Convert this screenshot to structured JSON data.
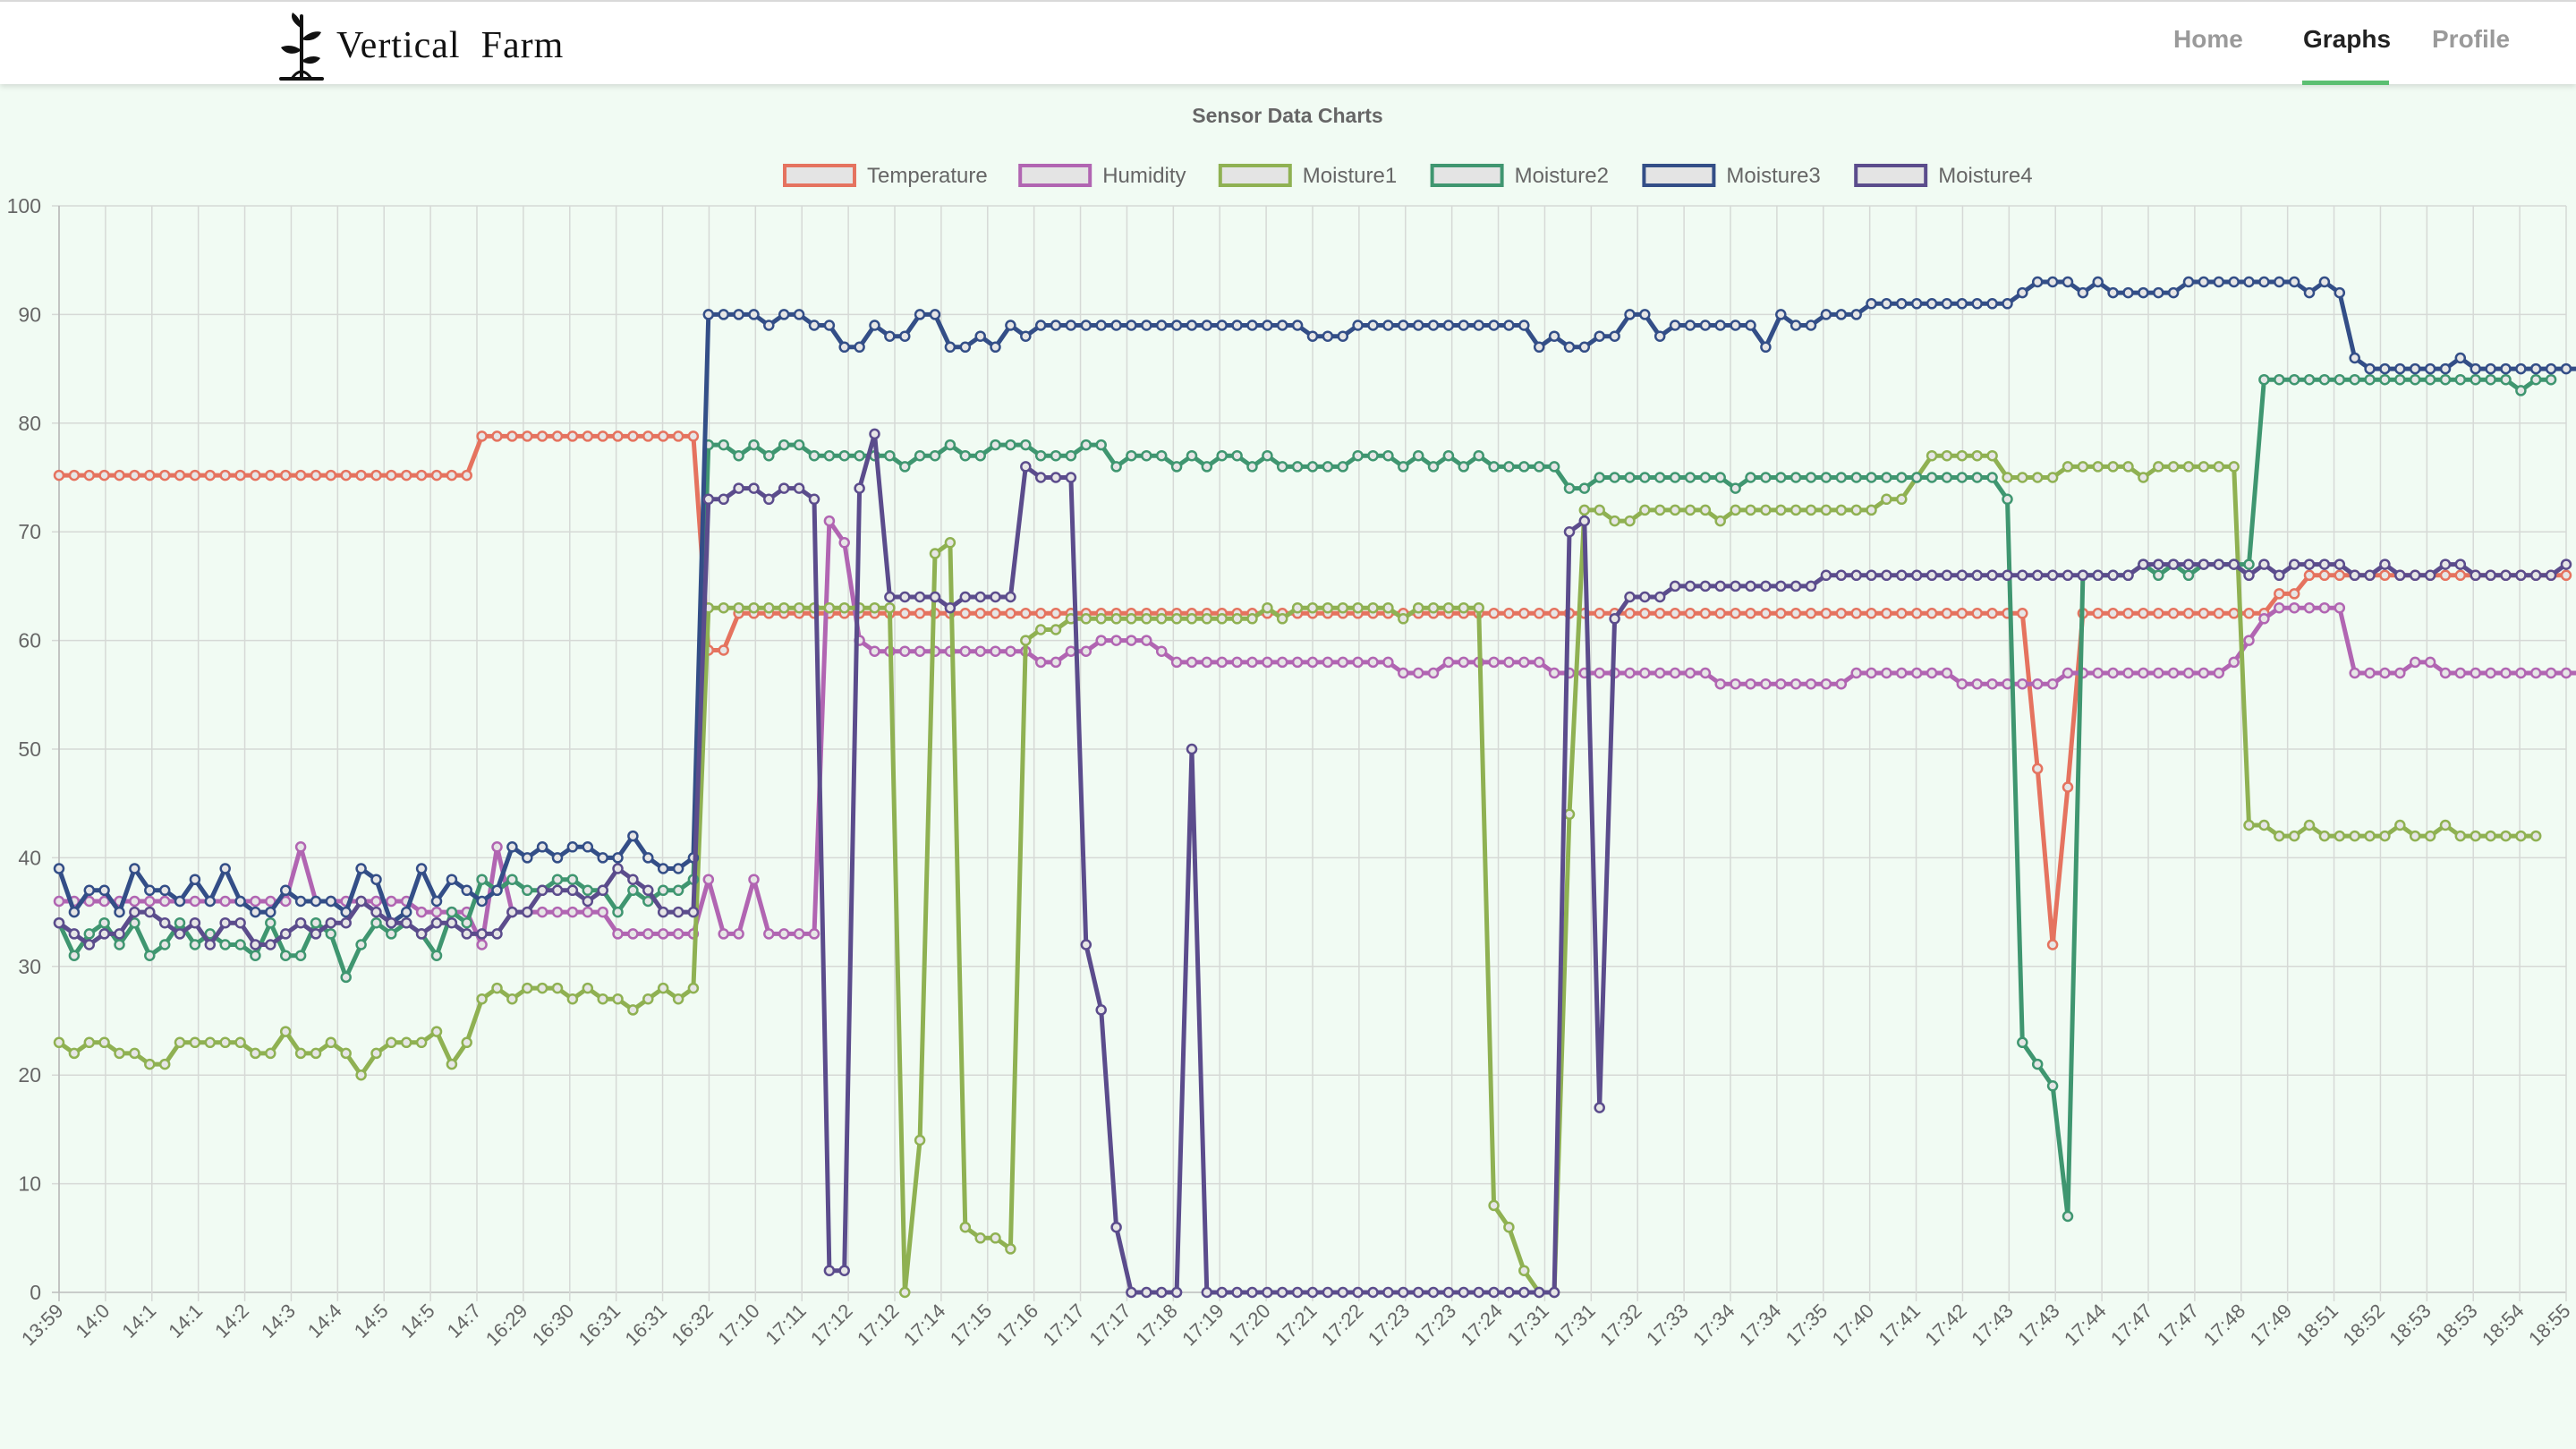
{
  "nav": {
    "brand": "Vertical  Farm",
    "brand_icon": "plant-logo-icon",
    "links": [
      {
        "label": "Home",
        "active": false
      },
      {
        "label": "Graphs",
        "active": true
      },
      {
        "label": "Profile",
        "active": false
      }
    ],
    "active_color": "#5cbf72"
  },
  "chart_data": {
    "type": "line",
    "title": "Sensor Data Charts",
    "xlabel": "",
    "ylabel": "",
    "ylim": [
      0,
      100
    ],
    "yticks": [
      0,
      10,
      20,
      30,
      40,
      50,
      60,
      70,
      80,
      90,
      100
    ],
    "grid": true,
    "legend": "top",
    "xtick_labels": [
      "13:59",
      "14:0",
      "14:1",
      "14:1",
      "14:2",
      "14:3",
      "14:4",
      "14:5",
      "14:5",
      "14:7",
      "16:29",
      "16:30",
      "16:31",
      "16:31",
      "16:32",
      "17:10",
      "17:11",
      "17:12",
      "17:12",
      "17:14",
      "17:15",
      "17:16",
      "17:17",
      "17:17",
      "17:18",
      "17:19",
      "17:20",
      "17:21",
      "17:22",
      "17:23",
      "17:23",
      "17:24",
      "17:31",
      "17:31",
      "17:32",
      "17:33",
      "17:34",
      "17:34",
      "17:35",
      "17:40",
      "17:41",
      "17:42",
      "17:43",
      "17:43",
      "17:44",
      "17:47",
      "17:47",
      "17:48",
      "17:49",
      "18:51",
      "18:52",
      "18:53",
      "18:53",
      "18:54",
      "18:55"
    ],
    "series": [
      {
        "name": "Temperature",
        "color": "#e5735f",
        "values": [
          75.2,
          75.2,
          75.2,
          75.2,
          75.2,
          75.2,
          75.2,
          75.2,
          75.2,
          75.2,
          75.2,
          75.2,
          75.2,
          75.2,
          75.2,
          75.2,
          75.2,
          75.2,
          75.2,
          75.2,
          75.2,
          75.2,
          75.2,
          75.2,
          75.2,
          75.2,
          75.2,
          75.2,
          78.8,
          78.8,
          78.8,
          78.8,
          78.8,
          78.8,
          78.8,
          78.8,
          78.8,
          78.8,
          78.8,
          78.8,
          78.8,
          78.8,
          78.8,
          59.1,
          59.1,
          62.5,
          62.5,
          62.5,
          62.5,
          62.5,
          62.5,
          62.5,
          62.5,
          62.5,
          62.5,
          62.5,
          62.5,
          62.5,
          62.5,
          62.5,
          62.5,
          62.5,
          62.5,
          62.5,
          62.5,
          62.5,
          62.5,
          62.5,
          62.5,
          62.5,
          62.5,
          62.5,
          62.5,
          62.5,
          62.5,
          62.5,
          62.5,
          62.5,
          62.5,
          62.5,
          62.5,
          62.5,
          62.5,
          62.5,
          62.5,
          62.5,
          62.5,
          62.5,
          62.5,
          62.5,
          62.5,
          62.5,
          62.5,
          62.5,
          62.5,
          62.5,
          62.5,
          62.5,
          62.5,
          62.5,
          62.5,
          62.5,
          62.5,
          62.5,
          62.5,
          62.5,
          62.5,
          62.5,
          62.5,
          62.5,
          62.5,
          62.5,
          62.5,
          62.5,
          62.5,
          62.5,
          62.5,
          62.5,
          62.5,
          62.5,
          62.5,
          62.5,
          62.5,
          62.5,
          62.5,
          62.5,
          62.5,
          62.5,
          62.5,
          62.5,
          62.5,
          48.2,
          32,
          46.5,
          62.5,
          62.5,
          62.5,
          62.5,
          62.5,
          62.5,
          62.5,
          62.5,
          62.5,
          62.5,
          62.5,
          62.5,
          62.5,
          64.3,
          64.3,
          66,
          66,
          66,
          66,
          66,
          66,
          66,
          66,
          66,
          66,
          66,
          66,
          66,
          66,
          66,
          66,
          66,
          66
        ]
      },
      {
        "name": "Humidity",
        "color": "#b165b2",
        "values": [
          36,
          36,
          36,
          36,
          36,
          36,
          36,
          36,
          36,
          36,
          36,
          36,
          36,
          36,
          36,
          36,
          41,
          36,
          36,
          36,
          36,
          36,
          36,
          36,
          35,
          35,
          35,
          35,
          32,
          41,
          35,
          35,
          35,
          35,
          35,
          35,
          35,
          33,
          33,
          33,
          33,
          33,
          33,
          38,
          33,
          33,
          38,
          33,
          33,
          33,
          33,
          71,
          69,
          60,
          59,
          59,
          59,
          59,
          59,
          59,
          59,
          59,
          59,
          59,
          59,
          58,
          58,
          59,
          59,
          60,
          60,
          60,
          60,
          59,
          58,
          58,
          58,
          58,
          58,
          58,
          58,
          58,
          58,
          58,
          58,
          58,
          58,
          58,
          58,
          57,
          57,
          57,
          58,
          58,
          58,
          58,
          58,
          58,
          58,
          57,
          57,
          57,
          57,
          57,
          57,
          57,
          57,
          57,
          57,
          57,
          56,
          56,
          56,
          56,
          56,
          56,
          56,
          56,
          56,
          57,
          57,
          57,
          57,
          57,
          57,
          57,
          56,
          56,
          56,
          56,
          56,
          56,
          56,
          57,
          57,
          57,
          57,
          57,
          57,
          57,
          57,
          57,
          57,
          57,
          58,
          60,
          62,
          63,
          63,
          63,
          63,
          63,
          57,
          57,
          57,
          57,
          58,
          58,
          57,
          57,
          57,
          57,
          57,
          57,
          57,
          57,
          57,
          57,
          56,
          56,
          56,
          56,
          56,
          56,
          56,
          56,
          56,
          56,
          56,
          56
        ]
      },
      {
        "name": "Moisture1",
        "color": "#8fb152",
        "values": [
          23,
          22,
          23,
          23,
          22,
          22,
          21,
          21,
          23,
          23,
          23,
          23,
          23,
          22,
          22,
          24,
          22,
          22,
          23,
          22,
          20,
          22,
          23,
          23,
          23,
          24,
          21,
          23,
          27,
          28,
          27,
          28,
          28,
          28,
          27,
          28,
          27,
          27,
          26,
          27,
          28,
          27,
          28,
          63,
          63,
          63,
          63,
          63,
          63,
          63,
          63,
          63,
          63,
          63,
          63,
          63,
          0,
          14,
          68,
          69,
          6,
          5,
          5,
          4,
          60,
          61,
          61,
          62,
          62,
          62,
          62,
          62,
          62,
          62,
          62,
          62,
          62,
          62,
          62,
          62,
          63,
          62,
          63,
          63,
          63,
          63,
          63,
          63,
          63,
          62,
          63,
          63,
          63,
          63,
          63,
          8,
          6,
          2,
          0,
          0,
          44,
          72,
          72,
          71,
          71,
          72,
          72,
          72,
          72,
          72,
          71,
          72,
          72,
          72,
          72,
          72,
          72,
          72,
          72,
          72,
          72,
          73,
          73,
          75,
          77,
          77,
          77,
          77,
          77,
          75,
          75,
          75,
          75,
          76,
          76,
          76,
          76,
          76,
          75,
          76,
          76,
          76,
          76,
          76,
          76,
          43,
          43,
          42,
          42,
          43,
          42,
          42,
          42,
          42,
          42,
          43,
          42,
          42,
          43,
          42,
          42,
          42,
          42,
          42,
          42
        ]
      },
      {
        "name": "Moisture2",
        "color": "#3f9670",
        "values": [
          34,
          31,
          33,
          34,
          32,
          34,
          31,
          32,
          34,
          32,
          33,
          32,
          32,
          31,
          34,
          31,
          31,
          34,
          33,
          29,
          32,
          34,
          33,
          34,
          33,
          31,
          35,
          34,
          38,
          37,
          38,
          37,
          37,
          38,
          38,
          37,
          37,
          35,
          37,
          36,
          37,
          37,
          38,
          78,
          78,
          77,
          78,
          77,
          78,
          78,
          77,
          77,
          77,
          77,
          77,
          77,
          76,
          77,
          77,
          78,
          77,
          77,
          78,
          78,
          78,
          77,
          77,
          77,
          78,
          78,
          76,
          77,
          77,
          77,
          76,
          77,
          76,
          77,
          77,
          76,
          77,
          76,
          76,
          76,
          76,
          76,
          77,
          77,
          77,
          76,
          77,
          76,
          77,
          76,
          77,
          76,
          76,
          76,
          76,
          76,
          74,
          74,
          75,
          75,
          75,
          75,
          75,
          75,
          75,
          75,
          75,
          74,
          75,
          75,
          75,
          75,
          75,
          75,
          75,
          75,
          75,
          75,
          75,
          75,
          75,
          75,
          75,
          75,
          75,
          73,
          23,
          21,
          19,
          7,
          66,
          66,
          66,
          66,
          67,
          66,
          67,
          66,
          67,
          67,
          67,
          67,
          84,
          84,
          84,
          84,
          84,
          84,
          84,
          84,
          84,
          84,
          84,
          84,
          84,
          84,
          84,
          84,
          84,
          83,
          84,
          84
        ]
      },
      {
        "name": "Moisture3",
        "color": "#334e87",
        "values": [
          39,
          35,
          37,
          37,
          35,
          39,
          37,
          37,
          36,
          38,
          36,
          39,
          36,
          35,
          35,
          37,
          36,
          36,
          36,
          35,
          39,
          38,
          34,
          35,
          39,
          36,
          38,
          37,
          36,
          37,
          41,
          40,
          41,
          40,
          41,
          41,
          40,
          40,
          42,
          40,
          39,
          39,
          40,
          90,
          90,
          90,
          90,
          89,
          90,
          90,
          89,
          89,
          87,
          87,
          89,
          88,
          88,
          90,
          90,
          87,
          87,
          88,
          87,
          89,
          88,
          89,
          89,
          89,
          89,
          89,
          89,
          89,
          89,
          89,
          89,
          89,
          89,
          89,
          89,
          89,
          89,
          89,
          89,
          88,
          88,
          88,
          89,
          89,
          89,
          89,
          89,
          89,
          89,
          89,
          89,
          89,
          89,
          89,
          87,
          88,
          87,
          87,
          88,
          88,
          90,
          90,
          88,
          89,
          89,
          89,
          89,
          89,
          89,
          87,
          90,
          89,
          89,
          90,
          90,
          90,
          91,
          91,
          91,
          91,
          91,
          91,
          91,
          91,
          91,
          91,
          92,
          93,
          93,
          93,
          92,
          93,
          92,
          92,
          92,
          92,
          92,
          93,
          93,
          93,
          93,
          93,
          93,
          93,
          93,
          92,
          93,
          92,
          86,
          85,
          85,
          85,
          85,
          85,
          85,
          86,
          85,
          85,
          85,
          85,
          85,
          85,
          85,
          85,
          85,
          85,
          85
        ]
      },
      {
        "name": "Moisture4",
        "color": "#5b4c8c",
        "values": [
          34,
          33,
          32,
          33,
          33,
          35,
          35,
          34,
          33,
          34,
          32,
          34,
          34,
          32,
          32,
          33,
          34,
          33,
          34,
          34,
          36,
          35,
          34,
          34,
          33,
          34,
          34,
          33,
          33,
          33,
          35,
          35,
          37,
          37,
          37,
          36,
          37,
          39,
          38,
          37,
          35,
          35,
          35,
          73,
          73,
          74,
          74,
          73,
          74,
          74,
          73,
          2,
          2,
          74,
          79,
          64,
          64,
          64,
          64,
          63,
          64,
          64,
          64,
          64,
          76,
          75,
          75,
          75,
          32,
          26,
          6,
          0,
          0,
          0,
          0,
          50,
          0,
          0,
          0,
          0,
          0,
          0,
          0,
          0,
          0,
          0,
          0,
          0,
          0,
          0,
          0,
          0,
          0,
          0,
          0,
          0,
          0,
          0,
          0,
          0,
          70,
          71,
          17,
          62,
          64,
          64,
          64,
          65,
          65,
          65,
          65,
          65,
          65,
          65,
          65,
          65,
          65,
          66,
          66,
          66,
          66,
          66,
          66,
          66,
          66,
          66,
          66,
          66,
          66,
          66,
          66,
          66,
          66,
          66,
          66,
          66,
          66,
          66,
          67,
          67,
          67,
          67,
          67,
          67,
          67,
          66,
          67,
          66,
          67,
          67,
          67,
          67,
          66,
          66,
          67,
          66,
          66,
          66,
          67,
          67,
          66,
          66,
          66,
          66,
          66,
          66,
          67
        ]
      }
    ]
  }
}
